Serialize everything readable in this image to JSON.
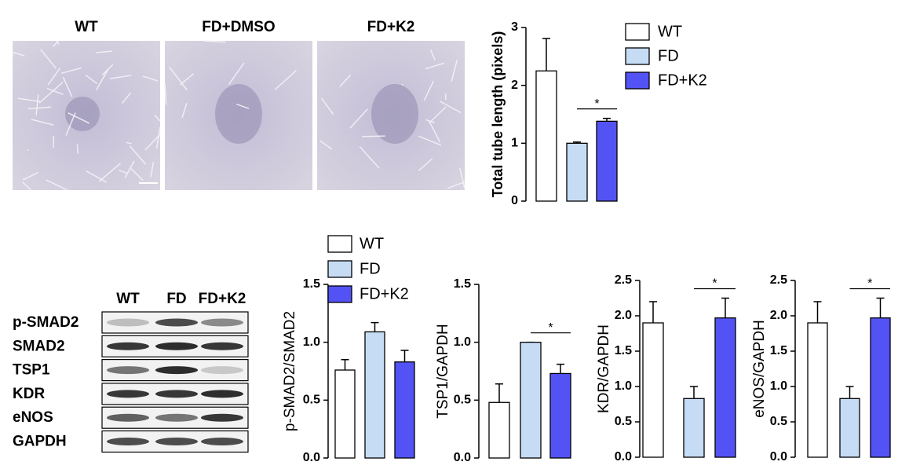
{
  "images": {
    "labels": [
      "WT",
      "FD+DMSO",
      "FD+K2"
    ]
  },
  "blot": {
    "columns": [
      "WT",
      "FD",
      "FD+K2"
    ],
    "rows": [
      "p-SMAD2",
      "SMAD2",
      "TSP1",
      "KDR",
      "eNOS",
      "GAPDH"
    ]
  },
  "chart_data": [
    {
      "type": "bar",
      "ylabel": "Total tube length (pixels)",
      "ylim": [
        0,
        3
      ],
      "yticks": [
        0,
        1,
        2,
        3
      ],
      "legend": true,
      "annotation": "*",
      "series": [
        {
          "name": "WT",
          "color": "#ffffff",
          "values": [
            2.25
          ],
          "errors": [
            0.56
          ]
        },
        {
          "name": "FD",
          "color": "#c6dcf5",
          "values": [
            1.0
          ],
          "errors": [
            0.02
          ]
        },
        {
          "name": "FD+K2",
          "color": "#5353f5",
          "values": [
            1.38
          ],
          "errors": [
            0.05
          ]
        }
      ]
    },
    {
      "type": "bar",
      "ylabel": "p-SMAD2/SMAD2",
      "ylim": [
        0,
        1.5
      ],
      "yticks": [
        {
          "value": 0,
          "label": "0.0"
        },
        0.5,
        {
          "value": 1,
          "label": "1.0"
        },
        1.5
      ],
      "legend": true,
      "series": [
        {
          "name": "WT",
          "color": "#ffffff",
          "values": [
            0.76
          ],
          "errors": [
            0.09
          ]
        },
        {
          "name": "FD",
          "color": "#c6dcf5",
          "values": [
            1.09
          ],
          "errors": [
            0.08
          ]
        },
        {
          "name": "FD+K2",
          "color": "#5353f5",
          "values": [
            0.83
          ],
          "errors": [
            0.1
          ]
        }
      ]
    },
    {
      "type": "bar",
      "ylabel": "TSP1/GAPDH",
      "ylim": [
        0,
        1.5
      ],
      "yticks": [
        {
          "value": 0,
          "label": "0.0"
        },
        0.5,
        {
          "value": 1,
          "label": "1.0"
        },
        1.5
      ],
      "legend": false,
      "annotation": "*",
      "series": [
        {
          "color": "#ffffff",
          "values": [
            0.48
          ],
          "errors": [
            0.16
          ]
        },
        {
          "color": "#c6dcf5",
          "values": [
            1.0
          ],
          "errors": [
            0.0
          ]
        },
        {
          "color": "#5353f5",
          "values": [
            0.73
          ],
          "errors": [
            0.08
          ]
        }
      ]
    },
    {
      "type": "bar",
      "ylabel": "KDR/GAPDH",
      "ylim": [
        0,
        2.5
      ],
      "yticks": [
        {
          "value": 0,
          "label": "0.0"
        },
        0.5,
        {
          "value": 1,
          "label": "1.0"
        },
        1.5,
        {
          "value": 2,
          "label": "2.0"
        },
        2.5
      ],
      "legend": false,
      "annotation": "*",
      "series": [
        {
          "color": "#ffffff",
          "values": [
            1.9
          ],
          "errors": [
            0.3
          ]
        },
        {
          "color": "#c6dcf5",
          "values": [
            0.83
          ],
          "errors": [
            0.17
          ]
        },
        {
          "color": "#5353f5",
          "values": [
            1.97
          ],
          "errors": [
            0.28
          ]
        }
      ]
    },
    {
      "type": "bar",
      "ylabel": "eNOS/GAPDH",
      "ylim": [
        0,
        2.5
      ],
      "yticks": [
        {
          "value": 0,
          "label": "0.0"
        },
        0.5,
        {
          "value": 1,
          "label": "1.0"
        },
        1.5,
        {
          "value": 2,
          "label": "2.0"
        },
        2.5
      ],
      "legend": false,
      "annotation": "*",
      "series": [
        {
          "color": "#ffffff",
          "values": [
            1.9
          ],
          "errors": [
            0.3
          ]
        },
        {
          "color": "#c6dcf5",
          "values": [
            0.83
          ],
          "errors": [
            0.17
          ]
        },
        {
          "color": "#5353f5",
          "values": [
            1.97
          ],
          "errors": [
            0.28
          ]
        }
      ]
    }
  ]
}
